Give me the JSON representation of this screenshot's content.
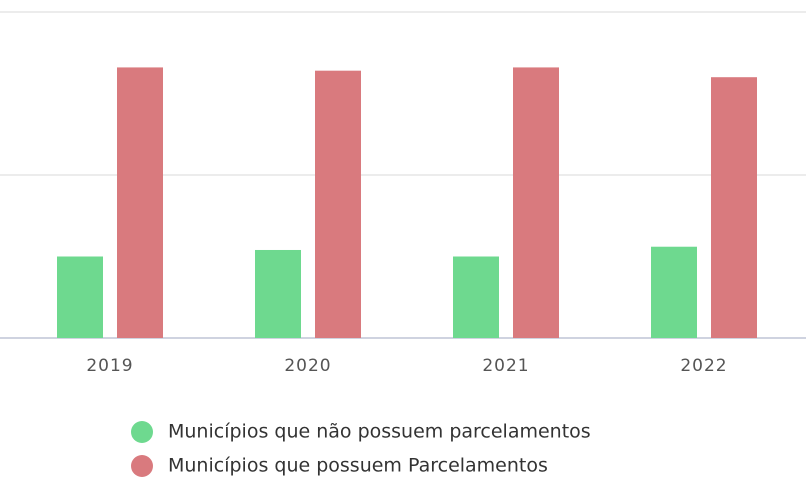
{
  "chart_data": {
    "type": "bar",
    "categories": [
      "2019",
      "2020",
      "2021",
      "2022"
    ],
    "series": [
      {
        "name": "Municípios que não possuem parcelamentos",
        "color": "#6ed98f",
        "values": [
          25,
          27,
          25,
          28
        ]
      },
      {
        "name": "Municípios que possuem Parcelamentos",
        "color": "#d97a7e",
        "values": [
          83,
          82,
          83,
          80
        ]
      }
    ],
    "ylim": [
      0,
      100
    ],
    "yticks": [
      0,
      50,
      100
    ],
    "grid": true,
    "legend": "bottom"
  }
}
